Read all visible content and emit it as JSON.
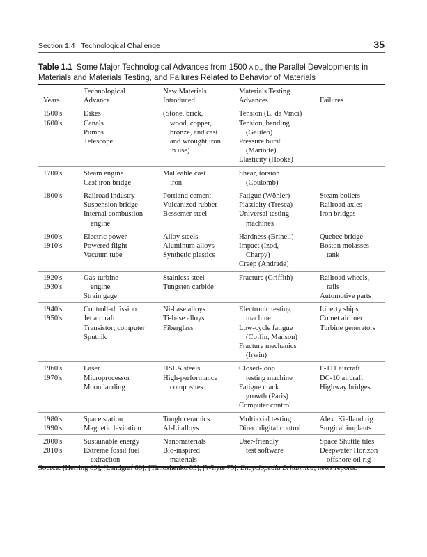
{
  "header": {
    "section": "Section 1.4   Technological Challenge",
    "page_number": "35"
  },
  "caption": {
    "label": "Table 1.1",
    "text_before": "Some Major Technological Advances from 1500 ",
    "ad": "A.D.",
    "text_after": ", the Parallel Developments in Materials and Materials Testing, and Failures Related to Behavior of Materials"
  },
  "table": {
    "headers": [
      [
        "",
        "Years"
      ],
      [
        "Technological",
        "Advance"
      ],
      [
        "New Materials",
        "Introduced"
      ],
      [
        "Materials Testing",
        "Advances"
      ],
      [
        "",
        "Failures"
      ]
    ],
    "groups": [
      {
        "cols": [
          [
            [
              "1500's"
            ],
            [
              "1600's"
            ]
          ],
          [
            [
              "Dikes"
            ],
            [
              "Canals"
            ],
            [
              "Pumps"
            ],
            [
              "Telescope"
            ]
          ],
          [
            [
              "(Stone, brick,",
              "wood, copper,",
              "bronze, and cast",
              "and wrought iron",
              "in use)"
            ]
          ],
          [
            [
              "Tension (L. da Vinci)"
            ],
            [
              "Tension, bending",
              "(Galileo)"
            ],
            [
              "Pressure burst",
              "(Mariotte)"
            ],
            [
              "Elasticity (Hooke)"
            ]
          ],
          []
        ]
      },
      {
        "cols": [
          [
            [
              "1700's"
            ]
          ],
          [
            [
              "Steam engine"
            ],
            [
              "Cast iron bridge"
            ]
          ],
          [
            [
              "Malleable cast",
              "iron"
            ]
          ],
          [
            [
              "Shear, torsion",
              "(Coulomb)"
            ]
          ],
          []
        ]
      },
      {
        "cols": [
          [
            [
              "1800's"
            ]
          ],
          [
            [
              "Railroad industry"
            ],
            [
              "Suspension bridge"
            ],
            [
              "Internal combustion",
              "engine"
            ]
          ],
          [
            [
              "Portland cement"
            ],
            [
              "Vulcanized rubber"
            ],
            [
              "Bessemer steel"
            ]
          ],
          [
            [
              "Fatigue (Wöhler)"
            ],
            [
              "Plasticity (Tresca)"
            ],
            [
              "Universal testing",
              "machines"
            ]
          ],
          [
            [
              "Steam boilers"
            ],
            [
              "Railroad axles"
            ],
            [
              "Iron bridges"
            ]
          ]
        ]
      },
      {
        "cols": [
          [
            [
              "1900's"
            ],
            [
              "1910's"
            ]
          ],
          [
            [
              "Electric power"
            ],
            [
              "Powered flight"
            ],
            [
              "Vacuum tube"
            ]
          ],
          [
            [
              "Alloy steels"
            ],
            [
              "Aluminum alloys"
            ],
            [
              "Synthetic plastics"
            ]
          ],
          [
            [
              "Hardness (Brinell)"
            ],
            [
              "Impact (Izod,",
              "Charpy)"
            ],
            [
              "Creep (Andrade)"
            ]
          ],
          [
            [
              "Quebec bridge"
            ],
            [
              "Boston molasses",
              "tank"
            ]
          ]
        ]
      },
      {
        "cols": [
          [
            [
              "1920's"
            ],
            [
              "1930's"
            ]
          ],
          [
            [
              "Gas-turbine",
              "engine"
            ],
            [
              "Strain gage"
            ]
          ],
          [
            [
              "Stainless steel"
            ],
            [
              "Tungsten carbide"
            ]
          ],
          [
            [
              "Fracture (Griffith)"
            ]
          ],
          [
            [
              "Railroad wheels,",
              "rails"
            ],
            [
              "Automotive parts"
            ]
          ]
        ]
      },
      {
        "cols": [
          [
            [
              "1940's"
            ],
            [
              "1950's"
            ]
          ],
          [
            [
              "Controlled fission"
            ],
            [
              "Jet aircraft"
            ],
            [
              "Transistor; computer"
            ],
            [
              "Sputnik"
            ]
          ],
          [
            [
              "Ni-base alloys"
            ],
            [
              "Ti-base alloys"
            ],
            [
              "Fiberglass"
            ]
          ],
          [
            [
              "Electronic testing",
              "machine"
            ],
            [
              "Low-cycle fatigue",
              "(Coffin, Manson)"
            ],
            [
              "Fracture mechanics",
              "(Irwin)"
            ]
          ],
          [
            [
              "Liberty ships"
            ],
            [
              "Comet airliner"
            ],
            [
              "Turbine generators"
            ]
          ]
        ]
      },
      {
        "cols": [
          [
            [
              "1960's"
            ],
            [
              "1970's"
            ]
          ],
          [
            [
              "Laser"
            ],
            [
              "Microprocessor"
            ],
            [
              "Moon landing"
            ]
          ],
          [
            [
              "HSLA steels"
            ],
            [
              "High-performance",
              "composites"
            ]
          ],
          [
            [
              "Closed-loop",
              "testing machine"
            ],
            [
              "Fatigue crack",
              "growth (Paris)"
            ],
            [
              "Computer control"
            ]
          ],
          [
            [
              "F-111 aircraft"
            ],
            [
              "DC-10 aircraft"
            ],
            [
              "Highway bridges"
            ]
          ]
        ]
      },
      {
        "cols": [
          [
            [
              "1980's"
            ],
            [
              "1990's"
            ]
          ],
          [
            [
              "Space station"
            ],
            [
              "Magnetic levitation"
            ]
          ],
          [
            [
              "Tough ceramics"
            ],
            [
              "Al-Li alloys"
            ]
          ],
          [
            [
              "Multiaxial testing"
            ],
            [
              "Direct digital control"
            ]
          ],
          [
            [
              "Alex. Kielland rig"
            ],
            [
              "Surgical implants"
            ]
          ]
        ]
      },
      {
        "cols": [
          [
            [
              "2000's"
            ],
            [
              "2010's"
            ]
          ],
          [
            [
              "Sustainable energy"
            ],
            [
              "Extreme fossil fuel",
              "extraction"
            ]
          ],
          [
            [
              "Nanomaterials"
            ],
            [
              "Bio-inspired",
              "materials"
            ]
          ],
          [
            [
              "User-friendly",
              "test software"
            ]
          ],
          [
            [
              "Space Shuttle tiles"
            ],
            [
              "Deepwater Horizon",
              "offshore oil rig"
            ]
          ]
        ]
      }
    ]
  },
  "source": {
    "before": "Source: [Herring 89], [Landgraf 80], [Timoshenko 83], [Whyte 75], ",
    "italic": "Encyclopedia Britannica",
    "after": ", news reports."
  }
}
